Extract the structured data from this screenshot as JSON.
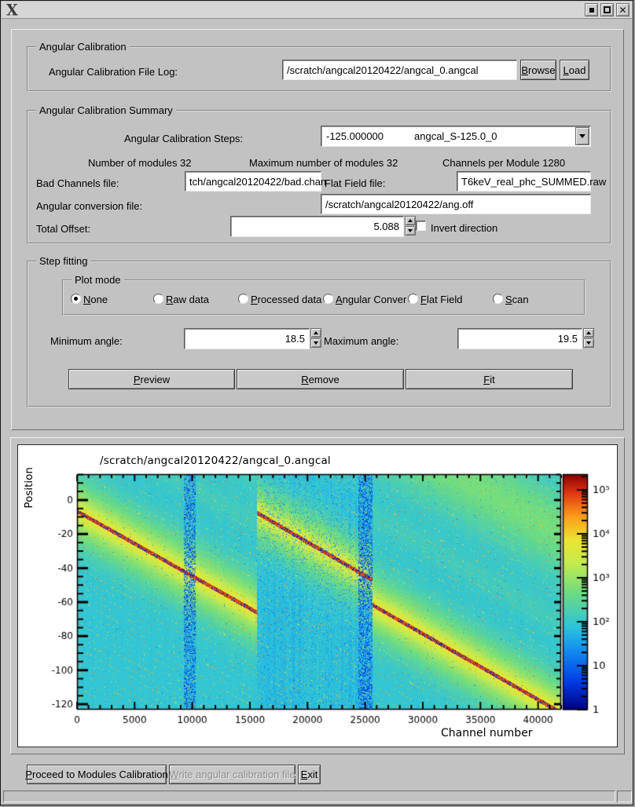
{
  "window": {
    "title": "",
    "controls": {
      "minimize": "minimize",
      "maximize": "maximize",
      "close": "close"
    }
  },
  "calibration": {
    "group_title": "Angular Calibration",
    "file_log_label": "Angular Calibration File Log:",
    "file_log_value": "/scratch/angcal20120422/angcal_0.angcal",
    "browse_label": "Browse",
    "load_label": "Load"
  },
  "summary": {
    "group_title": "Angular Calibration Summary",
    "steps_label": "Angular Calibration Steps:",
    "steps_value": "-125.000000",
    "steps_name": "angcal_S-125.0_0",
    "num_modules": "Number of modules 32",
    "max_modules": "Maximum number of modules 32",
    "channels_per_module": "Channels per Module 1280",
    "bad_channels_label": "Bad Channels file:",
    "bad_channels_value": "tch/angcal20120422/bad.chan",
    "flat_field_label": "Flat Field file:",
    "flat_field_value": "T6keV_real_phc_SUMMED.raw",
    "conversion_label": "Angular conversion file:",
    "conversion_value": "/scratch/angcal20120422/ang.off",
    "total_offset_label": "Total Offset:",
    "total_offset_value": "5.088",
    "invert_label": "Invert direction",
    "invert_checked": false
  },
  "step_fitting": {
    "group_title": "Step fitting",
    "plot_mode": {
      "group_title": "Plot mode",
      "options": [
        {
          "label": "None",
          "selected": true
        },
        {
          "label": "Raw data",
          "selected": false
        },
        {
          "label": "Processed data",
          "selected": false
        },
        {
          "label": "Angular Conver",
          "selected": false
        },
        {
          "label": "Flat Field",
          "selected": false
        },
        {
          "label": "Scan",
          "selected": false
        }
      ]
    },
    "min_angle_label": "Minimum angle:",
    "min_angle_value": "18.5",
    "max_angle_label": "Maximum angle:",
    "max_angle_value": "19.5",
    "preview_label": "Preview",
    "remove_label": "Remove",
    "fit_label": "Fit"
  },
  "bottom_buttons": {
    "proceed_label": "Proceed to Modules Calibration",
    "write_label": "Write angular calibration file",
    "write_enabled": false,
    "exit_label": "Exit"
  },
  "chart_data": {
    "type": "heatmap",
    "title": "/scratch/angcal20120422/angcal_0.angcal",
    "xlabel": "Channel number",
    "ylabel": "Position",
    "xlim": [
      0,
      42000
    ],
    "ylim": [
      -123.2,
      15.2
    ],
    "xticks": [
      0,
      5000,
      10000,
      15000,
      20000,
      25000,
      30000,
      35000,
      40000
    ],
    "minor_x_step": 1000,
    "yticks": [
      0,
      -20,
      -40,
      -60,
      -80,
      -100,
      -120
    ],
    "minor_y_step": 5,
    "colorbar": {
      "scale": "log",
      "min": 1,
      "max": 230000,
      "decades": 5.36,
      "tick_labels": [
        "1",
        "10",
        "10²",
        "10³",
        "10⁴",
        "10⁵"
      ]
    },
    "colormap": "jet",
    "colormap_stops": [
      [
        0.0,
        0,
        0,
        130
      ],
      [
        0.12,
        0,
        60,
        230
      ],
      [
        0.25,
        20,
        140,
        240
      ],
      [
        0.35,
        45,
        195,
        220
      ],
      [
        0.5,
        110,
        220,
        130
      ],
      [
        0.62,
        195,
        235,
        80
      ],
      [
        0.72,
        235,
        230,
        50
      ],
      [
        0.82,
        250,
        160,
        25
      ],
      [
        0.92,
        225,
        55,
        20
      ],
      [
        1.0,
        140,
        0,
        0
      ]
    ],
    "value_range_log10": [
      0.05,
      5.25
    ],
    "background_level": 1.95,
    "diffraction_line_segments": [
      {
        "ch_start": 0,
        "ch_end": 15600,
        "pos_start": -6.5,
        "slope_per_channel": -0.00381
      },
      {
        "ch_start": 15600,
        "ch_end": 25600,
        "pos_start": -7.3,
        "slope_per_channel": -0.00395
      },
      {
        "ch_start": 25600,
        "ch_end": 42000,
        "pos_start": -61.5,
        "slope_per_channel": -0.00387
      }
    ],
    "band_profile": {
      "main_strength": 1.25,
      "main_width": 19,
      "core_strength": 0.5,
      "core_width": 5.5
    },
    "echo_bands": [
      {
        "offset": 105,
        "width": 25,
        "strength": 0.75
      },
      {
        "offset": 52,
        "width": 9,
        "strength": 0.18
      }
    ],
    "noise_bands": [
      {
        "ch_start": 9250,
        "ch_end": 10250,
        "density": 0.5
      },
      {
        "ch_start": 24400,
        "ch_end": 25600,
        "density": 0.55
      }
    ],
    "noisy_section": {
      "ch_start": 15600,
      "ch_end": 25600,
      "speckle_prob": 0.1
    },
    "channels_per_module": 1280,
    "dotted_diagonals": {
      "spacing": 4.7,
      "prob": 0.1
    }
  }
}
